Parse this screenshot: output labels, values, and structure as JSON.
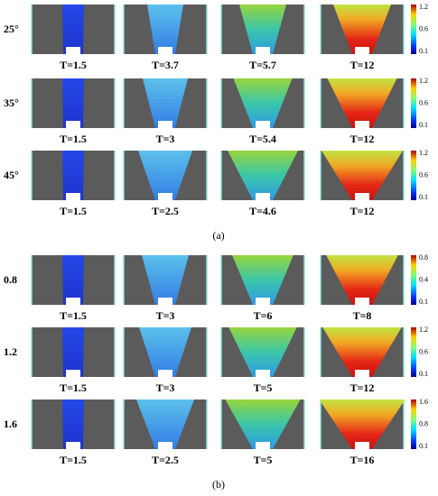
{
  "panels": [
    {
      "caption": "(a)",
      "rows": [
        {
          "label": "25°",
          "times": [
            "T=1.5",
            "T=3.7",
            "T=5.7",
            "T=12"
          ],
          "colorbar": [
            "1.2",
            "0.6",
            "0.1"
          ]
        },
        {
          "label": "35°",
          "times": [
            "T=1.5",
            "T=3",
            "T=5.4",
            "T=12"
          ],
          "colorbar": [
            "1.2",
            "0.6",
            "0.1"
          ]
        },
        {
          "label": "45°",
          "times": [
            "T=1.5",
            "T=2.5",
            "T=4.6",
            "T=12"
          ],
          "colorbar": [
            "1.2",
            "0.6",
            "0.1"
          ]
        }
      ]
    },
    {
      "caption": "(b)",
      "rows": [
        {
          "label": "0.8",
          "times": [
            "T=1.5",
            "T=3",
            "T=6",
            "T=8"
          ],
          "colorbar": [
            "0.8",
            "0.4",
            "0.1"
          ]
        },
        {
          "label": "1.2",
          "times": [
            "T=1.5",
            "T=3",
            "T=5",
            "T=12"
          ],
          "colorbar": [
            "1.2",
            "0.6",
            "0.1"
          ]
        },
        {
          "label": "1.6",
          "times": [
            "T=1.5",
            "T=2.5",
            "T=5",
            "T=16"
          ],
          "colorbar": [
            "1.6",
            "0.8",
            "0.1"
          ]
        }
      ]
    }
  ]
}
